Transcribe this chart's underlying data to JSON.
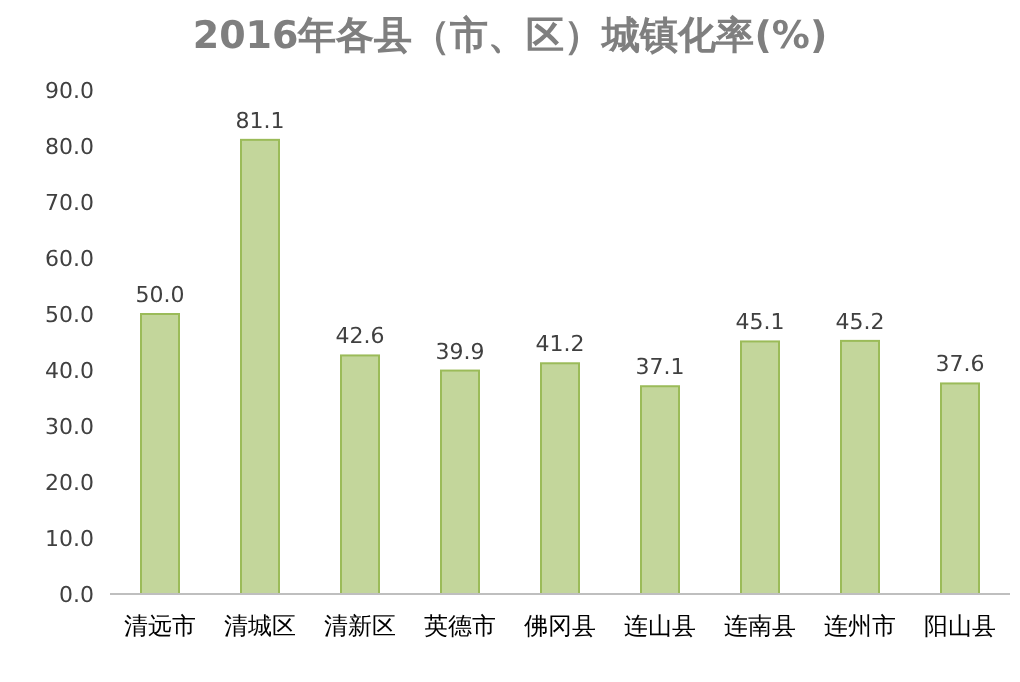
{
  "chart_data": {
    "type": "bar",
    "title": "2016年各县（市、区）城镇化率(%)",
    "categories": [
      "清远市",
      "清城区",
      "清新区",
      "英德市",
      "佛冈县",
      "连山县",
      "连南县",
      "连州市",
      "阳山县"
    ],
    "values": [
      50.0,
      81.1,
      42.6,
      39.9,
      41.2,
      37.1,
      45.1,
      45.2,
      37.6
    ],
    "value_labels": [
      "50.0",
      "81.1",
      "42.6",
      "39.9",
      "41.2",
      "37.1",
      "45.1",
      "45.2",
      "37.6"
    ],
    "color": "#c3d69b",
    "ylim": [
      0,
      90
    ],
    "yticks": [
      {
        "value": 0,
        "label": "0.0"
      },
      {
        "value": 10,
        "label": "10.0"
      },
      {
        "value": 20,
        "label": "20.0"
      },
      {
        "value": 30,
        "label": "30.0"
      },
      {
        "value": 40,
        "label": "40.0"
      },
      {
        "value": 50,
        "label": "50.0"
      },
      {
        "value": 60,
        "label": "60.0"
      },
      {
        "value": 70,
        "label": "70.0"
      },
      {
        "value": 80,
        "label": "80.0"
      },
      {
        "value": 90,
        "label": "90.0"
      }
    ],
    "grid": false
  }
}
